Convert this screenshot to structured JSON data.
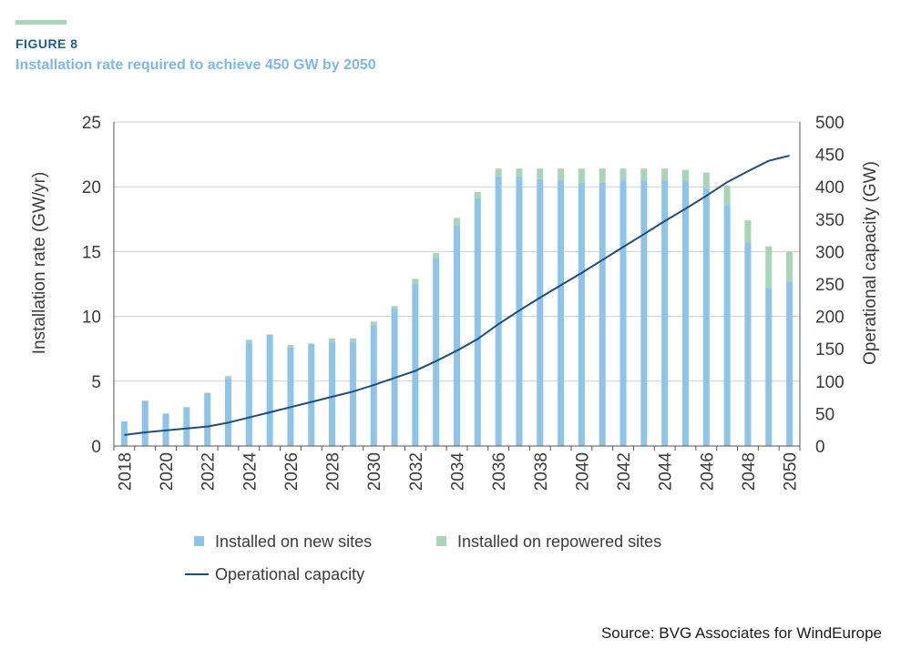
{
  "header": {
    "figure_label": "FIGURE 8",
    "title": "Installation rate required to achieve 450 GW by 2050"
  },
  "source": "Source: BVG Associates for WindEurope",
  "colors": {
    "new_sites": "#8ec4ea",
    "repowered_sites": "#a8d5b8",
    "operational": "#1f4e7a",
    "grid": "#d0d0d0",
    "accent": "#a8d5b8"
  },
  "chart_data": {
    "type": "bar+line",
    "title": "Installation rate required to achieve 450 GW by 2050",
    "ylabel": "Installation rate (GW/yr)",
    "y2label": "Operational capacity (GW)",
    "ylim": [
      0,
      25
    ],
    "y2lim": [
      0,
      500
    ],
    "yticks": [
      "0",
      "5",
      "10",
      "15",
      "20",
      "25"
    ],
    "y2ticks": [
      "0",
      "50",
      "100",
      "150",
      "200",
      "250",
      "300",
      "350",
      "400",
      "450",
      "500"
    ],
    "x": [
      2018,
      2019,
      2020,
      2021,
      2022,
      2023,
      2024,
      2025,
      2026,
      2027,
      2028,
      2029,
      2030,
      2031,
      2032,
      2033,
      2034,
      2035,
      2036,
      2037,
      2038,
      2039,
      2040,
      2041,
      2042,
      2043,
      2044,
      2045,
      2046,
      2047,
      2048,
      2049,
      2050
    ],
    "xtick_labels": [
      "2018",
      "2020",
      "2022",
      "2024",
      "2026",
      "2028",
      "2030",
      "2032",
      "2034",
      "2036",
      "2038",
      "2040",
      "2042",
      "2044",
      "2046",
      "2048",
      "2050"
    ],
    "series": [
      {
        "name": "Installed on new sites",
        "kind": "bar",
        "axis": "left",
        "values": [
          1.9,
          3.5,
          2.5,
          3.0,
          4.1,
          5.2,
          8.0,
          8.6,
          7.6,
          7.9,
          8.0,
          8.0,
          9.3,
          10.6,
          12.5,
          14.5,
          17.0,
          19.1,
          20.8,
          20.8,
          20.6,
          20.5,
          20.3,
          20.3,
          20.5,
          20.5,
          20.5,
          20.4,
          19.9,
          18.6,
          15.7,
          12.2,
          12.7
        ]
      },
      {
        "name": "Installed on repowered sites",
        "kind": "bar",
        "axis": "left",
        "values": [
          0,
          0,
          0,
          0,
          0,
          0.2,
          0.2,
          0,
          0.2,
          0,
          0.3,
          0.3,
          0.3,
          0.2,
          0.4,
          0.4,
          0.6,
          0.5,
          0.6,
          0.6,
          0.8,
          0.9,
          1.1,
          1.1,
          0.9,
          0.9,
          0.9,
          0.9,
          1.2,
          1.5,
          1.7,
          3.2,
          2.3
        ]
      },
      {
        "name": "Operational capacity",
        "kind": "line",
        "axis": "right",
        "values": [
          17,
          21,
          24,
          27,
          30,
          36,
          44,
          52,
          60,
          68,
          76,
          84,
          94,
          105,
          116,
          131,
          147,
          165,
          188,
          209,
          229,
          248,
          267,
          287,
          307,
          327,
          347,
          366,
          386,
          407,
          424,
          440,
          448
        ]
      }
    ],
    "legend": [
      "Installed on new sites",
      "Installed on repowered sites",
      "Operational capacity"
    ]
  }
}
